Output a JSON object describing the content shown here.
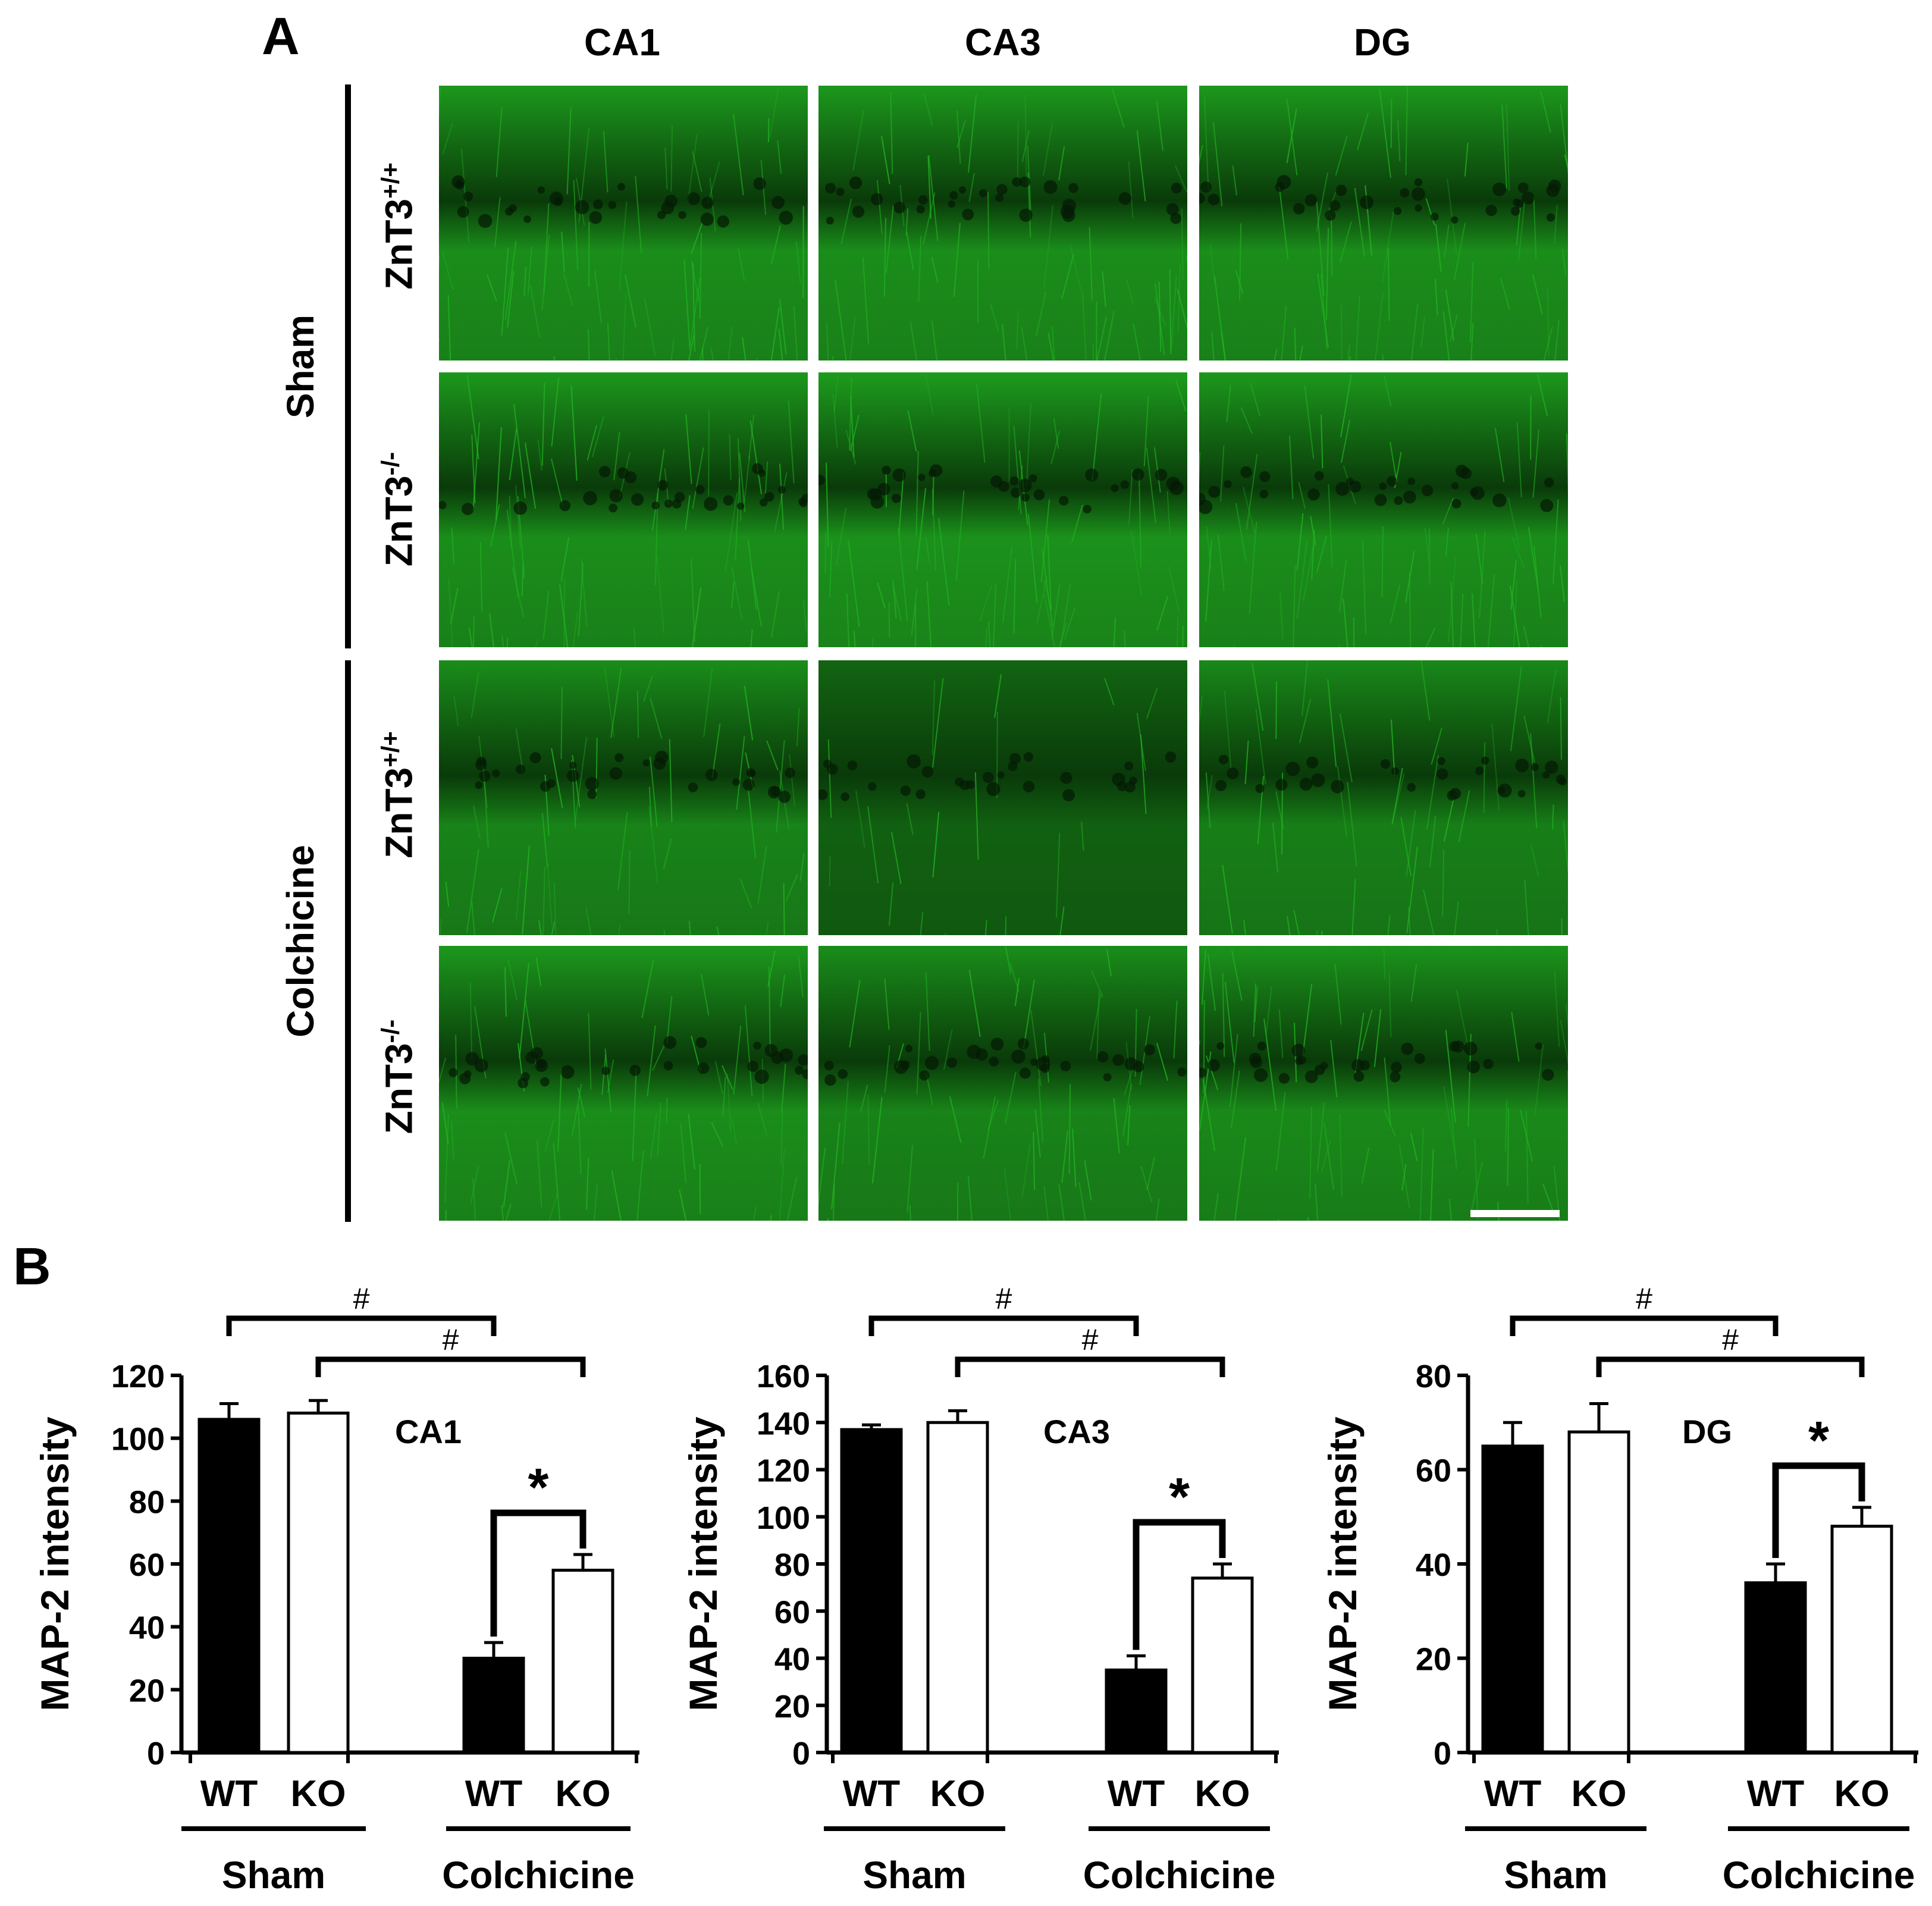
{
  "panels": {
    "a_label": "A",
    "b_label": "B"
  },
  "regions": [
    "CA1",
    "CA3",
    "DG"
  ],
  "treatments": {
    "sham": "Sham",
    "colchicine": "Colchicine"
  },
  "genotypes": {
    "wt_base": "ZnT3",
    "wt_sup": "+/+",
    "ko_base": "ZnT3",
    "ko_sup": "-/-"
  },
  "colors": {
    "green": "#22b422",
    "dark": "#062806",
    "wt_bar": "#000000",
    "ko_bar": "#ffffff"
  },
  "chart_data": [
    {
      "type": "bar",
      "region_label": "CA1",
      "ylabel": "MAP-2 intensity",
      "ylim": [
        0,
        120
      ],
      "yticks": [
        "0",
        "20",
        "40",
        "60",
        "80",
        "100",
        "120"
      ],
      "categories": [
        "WT",
        "KO",
        "WT",
        "KO"
      ],
      "groups": [
        "Sham",
        "Colchicine"
      ],
      "values": [
        106,
        108,
        30,
        58
      ],
      "errors": [
        5,
        4,
        5,
        5
      ],
      "annotations": [
        "#",
        "#",
        "*"
      ]
    },
    {
      "type": "bar",
      "region_label": "CA3",
      "ylabel": "MAP-2 intensity",
      "ylim": [
        0,
        160
      ],
      "yticks": [
        "0",
        "20",
        "40",
        "60",
        "80",
        "100",
        "120",
        "140",
        "160"
      ],
      "categories": [
        "WT",
        "KO",
        "WT",
        "KO"
      ],
      "groups": [
        "Sham",
        "Colchicine"
      ],
      "values": [
        137,
        140,
        35,
        74
      ],
      "errors": [
        2,
        5,
        6,
        6
      ],
      "annotations": [
        "#",
        "#",
        "*"
      ]
    },
    {
      "type": "bar",
      "region_label": "DG",
      "ylabel": "MAP-2 intensity",
      "ylim": [
        0,
        80
      ],
      "yticks": [
        "0",
        "20",
        "40",
        "60",
        "80"
      ],
      "categories": [
        "WT",
        "KO",
        "WT",
        "KO"
      ],
      "groups": [
        "Sham",
        "Colchicine"
      ],
      "values": [
        65,
        68,
        36,
        48
      ],
      "errors": [
        5,
        6,
        4,
        4
      ],
      "annotations": [
        "#",
        "#",
        "*"
      ]
    }
  ]
}
